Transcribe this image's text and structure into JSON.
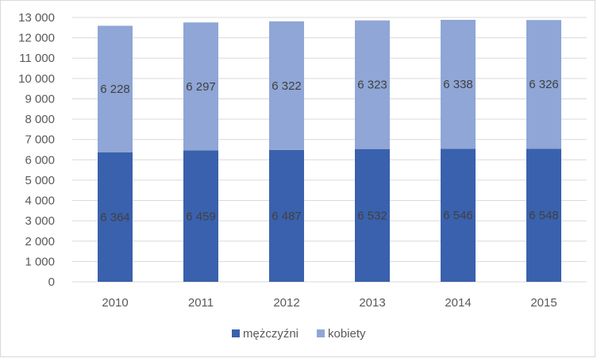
{
  "chart_data": {
    "type": "bar",
    "stacked": true,
    "categories": [
      "2010",
      "2011",
      "2012",
      "2013",
      "2014",
      "2015"
    ],
    "series": [
      {
        "name": "mężczyźni",
        "values": [
          6364,
          6459,
          6487,
          6532,
          6546,
          6548
        ],
        "color": "#3a61ad"
      },
      {
        "name": "kobiety",
        "values": [
          6228,
          6297,
          6322,
          6323,
          6338,
          6326
        ],
        "color": "#8fa6d6"
      }
    ],
    "data_labels": {
      "mężczyźni": [
        "6 364",
        "6 459",
        "6 487",
        "6 532",
        "6 546",
        "6 548"
      ],
      "kobiety": [
        "6 228",
        "6 297",
        "6 322",
        "6 323",
        "6 338",
        "6 326"
      ]
    },
    "yticks": [
      "0",
      "1 000",
      "2 000",
      "3 000",
      "4 000",
      "5 000",
      "6 000",
      "7 000",
      "8 000",
      "9 000",
      "10 000",
      "11 000",
      "12 000",
      "13 000"
    ],
    "ylim": [
      0,
      13000
    ],
    "title": "",
    "xlabel": "",
    "ylabel": "",
    "grid": true,
    "legend_position": "bottom",
    "colors": {
      "grid": "#d9d9d9",
      "tick_text": "#595959",
      "data_label": "#404040",
      "border": "#d9d9d9"
    }
  }
}
